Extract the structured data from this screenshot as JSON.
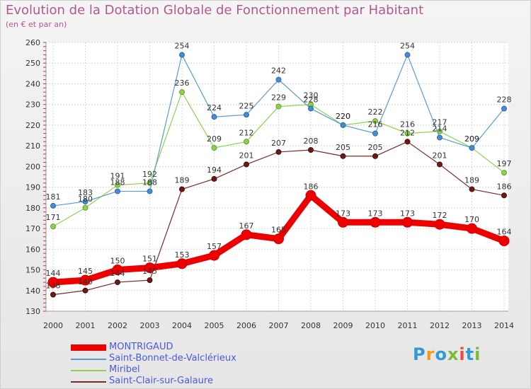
{
  "title": "Evolution de la Dotation Globale de Fonctionnement par Habitant",
  "subtitle": "(en € et par an)",
  "logo": {
    "text": "Proxiti",
    "letters": [
      "P",
      "r",
      "o",
      "x",
      "i",
      "t",
      "i"
    ],
    "colors": [
      "#2e9bd6",
      "#f39c12",
      "#2e9bd6",
      "#7cb83a",
      "#e74c3c",
      "#2e9bd6",
      "#7cb83a"
    ]
  },
  "chart_data": {
    "type": "line",
    "x": [
      "2000",
      "2001",
      "2002",
      "2003",
      "2004",
      "2005",
      "2006",
      "2007",
      "2008",
      "2009",
      "2010",
      "2011",
      "2012",
      "2013",
      "2014"
    ],
    "y_ticks": [
      "130",
      "140",
      "150",
      "160",
      "170",
      "180",
      "190",
      "200",
      "210",
      "220",
      "230",
      "240",
      "250",
      "260"
    ],
    "ylim": [
      130,
      260
    ],
    "grid": true,
    "legend_position": "bottom-left",
    "series": [
      {
        "name": "MONTRIGAUD",
        "color": "#ee0000",
        "values": [
          144,
          145,
          150,
          151,
          153,
          157,
          167,
          165,
          186,
          173,
          173,
          173,
          172,
          170,
          164
        ]
      },
      {
        "name": "Saint-Bonnet-de-Valclérieux",
        "color": "#5a9bd5",
        "values": [
          181,
          183,
          188,
          188,
          254,
          224,
          225,
          242,
          228,
          220,
          216,
          254,
          214,
          209,
          228
        ]
      },
      {
        "name": "Miribel",
        "color": "#8fd14f",
        "values": [
          171,
          180,
          191,
          192,
          236,
          209,
          212,
          229,
          230,
          220,
          222,
          216,
          217,
          209,
          197
        ]
      },
      {
        "name": "Saint-Clair-sur-Galaure",
        "color": "#7a2a2a",
        "values": [
          138,
          140,
          144,
          145,
          189,
          194,
          201,
          207,
          208,
          205,
          205,
          212,
          201,
          189,
          186
        ]
      }
    ]
  }
}
